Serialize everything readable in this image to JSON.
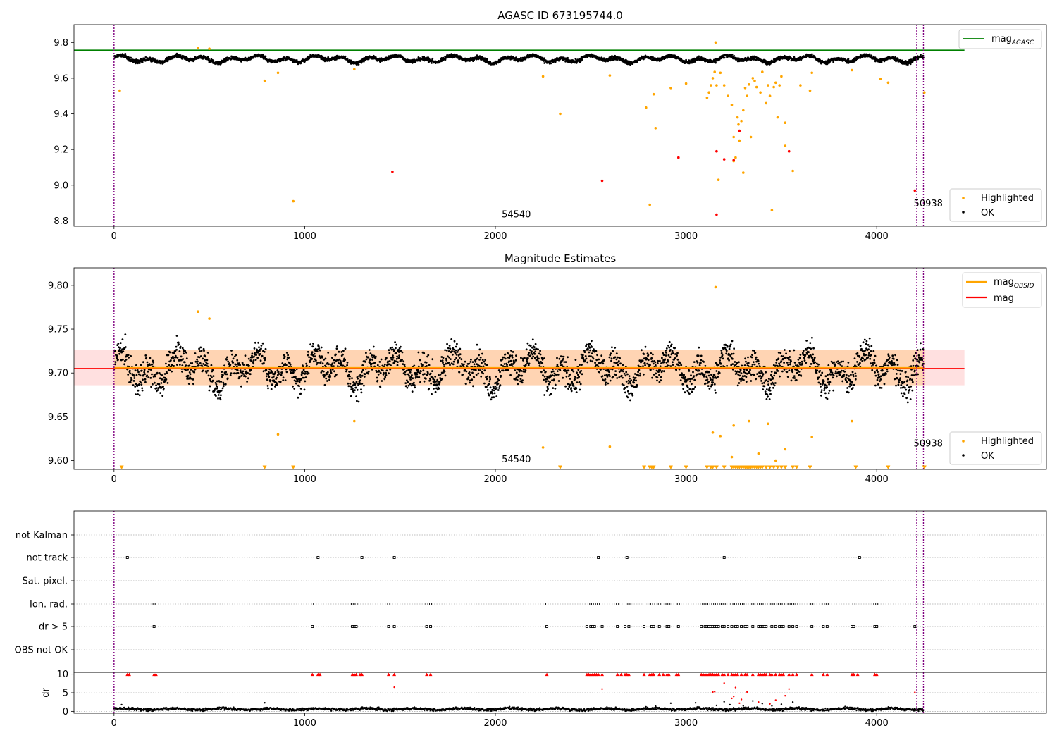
{
  "chart_data": [
    {
      "type": "scatter",
      "title": "AGASC ID 673195744.0",
      "xlim": [
        -210,
        4890
      ],
      "ylim": [
        8.77,
        9.9
      ],
      "xticks": [
        0,
        1000,
        2000,
        3000,
        4000
      ],
      "yticks": [
        8.8,
        9.0,
        9.2,
        9.4,
        9.6,
        9.8
      ],
      "ytick_format": 1,
      "vlines": [
        0,
        4210,
        4245
      ],
      "hline": {
        "name": "mag_AGASC",
        "y": 9.757,
        "x_end": 4460,
        "color": "#008000"
      },
      "annotations": [
        {
          "text": "54540",
          "x": 2110,
          "y": 8.82
        },
        {
          "text": "50938",
          "x": 4270,
          "y": 8.88
        }
      ],
      "ok_band": {
        "y": 9.705,
        "amp": 0.02,
        "noise": 0.009
      },
      "series": [
        {
          "name": "Highlighted",
          "color": "#ffa500",
          "values": [
            [
              30,
              9.53
            ],
            [
              440,
              9.77
            ],
            [
              500,
              9.765
            ],
            [
              790,
              9.585
            ],
            [
              860,
              9.63
            ],
            [
              940,
              8.91
            ],
            [
              1260,
              9.65
            ],
            [
              2250,
              9.61
            ],
            [
              2340,
              9.4
            ],
            [
              2600,
              9.615
            ],
            [
              2790,
              9.435
            ],
            [
              2810,
              8.89
            ],
            [
              2830,
              9.51
            ],
            [
              2840,
              9.32
            ],
            [
              2920,
              9.545
            ],
            [
              3000,
              9.57
            ],
            [
              3110,
              9.49
            ],
            [
              3120,
              9.52
            ],
            [
              3130,
              9.56
            ],
            [
              3140,
              9.6
            ],
            [
              3150,
              9.635
            ],
            [
              3155,
              9.8
            ],
            [
              3160,
              9.56
            ],
            [
              3170,
              9.03
            ],
            [
              3180,
              9.63
            ],
            [
              3200,
              9.56
            ],
            [
              3220,
              9.5
            ],
            [
              3240,
              9.45
            ],
            [
              3250,
              9.27
            ],
            [
              3250,
              9.135
            ],
            [
              3260,
              9.155
            ],
            [
              3270,
              9.38
            ],
            [
              3275,
              9.34
            ],
            [
              3280,
              9.25
            ],
            [
              3290,
              9.36
            ],
            [
              3300,
              9.42
            ],
            [
              3300,
              9.07
            ],
            [
              3310,
              9.545
            ],
            [
              3320,
              9.5
            ],
            [
              3330,
              9.565
            ],
            [
              3340,
              9.27
            ],
            [
              3350,
              9.6
            ],
            [
              3360,
              9.585
            ],
            [
              3370,
              9.55
            ],
            [
              3390,
              9.52
            ],
            [
              3400,
              9.635
            ],
            [
              3420,
              9.46
            ],
            [
              3430,
              9.56
            ],
            [
              3440,
              9.5
            ],
            [
              3450,
              8.86
            ],
            [
              3460,
              9.55
            ],
            [
              3470,
              9.575
            ],
            [
              3480,
              9.38
            ],
            [
              3490,
              9.56
            ],
            [
              3500,
              9.61
            ],
            [
              3520,
              9.35
            ],
            [
              3520,
              9.22
            ],
            [
              3560,
              9.08
            ],
            [
              3600,
              9.56
            ],
            [
              3650,
              9.53
            ],
            [
              3660,
              9.63
            ],
            [
              3870,
              9.645
            ],
            [
              4020,
              9.595
            ],
            [
              4060,
              9.575
            ],
            [
              4250,
              9.52
            ]
          ]
        },
        {
          "name": "Red",
          "color": "#ff0000",
          "values": [
            [
              1460,
              9.075
            ],
            [
              2560,
              9.025
            ],
            [
              2960,
              9.155
            ],
            [
              3160,
              9.19
            ],
            [
              3160,
              8.835
            ],
            [
              3200,
              9.145
            ],
            [
              3250,
              9.14
            ],
            [
              3280,
              9.305
            ],
            [
              3540,
              9.19
            ],
            [
              4200,
              8.97
            ]
          ]
        }
      ],
      "legend": [
        {
          "text": "mag",
          "sub": "AGASC",
          "kind": "line",
          "color": "#008000",
          "pos": "upper-right"
        },
        {
          "text": "Highlighted",
          "kind": "dot",
          "color": "#ffa500",
          "pos": "lower-right"
        },
        {
          "text": "OK",
          "kind": "dot",
          "color": "#000000",
          "pos": "lower-right"
        }
      ]
    },
    {
      "type": "scatter",
      "title": "Magnitude Estimates",
      "xlim": [
        -210,
        4890
      ],
      "ylim": [
        9.59,
        9.82
      ],
      "xticks": [
        0,
        1000,
        2000,
        3000,
        4000
      ],
      "yticks": [
        9.6,
        9.65,
        9.7,
        9.75,
        9.8
      ],
      "ytick_format": 2,
      "vlines": [
        0,
        4210,
        4245
      ],
      "band": {
        "y_low": 9.686,
        "y_high": 9.726,
        "x_start": -210,
        "x_end": 4460,
        "color": "#ff0000",
        "opacity": 0.12
      },
      "band2": {
        "y_low": 9.686,
        "y_high": 9.726,
        "x_start": 0,
        "x_end": 4250,
        "color": "#ffa500",
        "opacity": 0.2
      },
      "hlines": [
        {
          "name": "mag",
          "y": 9.705,
          "x_start": -210,
          "x_end": 4460,
          "color": "#ff0000"
        },
        {
          "name": "mag_OBSID",
          "y": 9.706,
          "x_start": 0,
          "x_end": 4250,
          "color": "#ffa500"
        }
      ],
      "annotations": [
        {
          "text": "54540",
          "x": 2110,
          "y": 9.598
        },
        {
          "text": "50938",
          "x": 4270,
          "y": 9.616
        }
      ],
      "ok_band": {
        "y": 9.705,
        "amp": 0.018,
        "noise": 0.016
      },
      "series": [
        {
          "name": "Highlighted",
          "color": "#ffa500",
          "values": [
            [
              440,
              9.77
            ],
            [
              500,
              9.762
            ],
            [
              860,
              9.63
            ],
            [
              1260,
              9.645
            ],
            [
              2250,
              9.615
            ],
            [
              2600,
              9.616
            ],
            [
              3140,
              9.632
            ],
            [
              3155,
              9.798
            ],
            [
              3180,
              9.628
            ],
            [
              3250,
              9.64
            ],
            [
              3330,
              9.645
            ],
            [
              3430,
              9.642
            ],
            [
              3520,
              9.613
            ],
            [
              3660,
              9.627
            ],
            [
              3870,
              9.645
            ],
            [
              3240,
              9.604
            ],
            [
              3380,
              9.608
            ],
            [
              3470,
              9.6
            ]
          ]
        },
        {
          "name": "Off-scale",
          "color": "#ffa500",
          "marker": "triangle",
          "y": 9.592,
          "values": [
            40,
            790,
            940,
            2340,
            2780,
            2810,
            2820,
            2830,
            2920,
            3000,
            3110,
            3130,
            3140,
            3160,
            3200,
            3240,
            3250,
            3260,
            3270,
            3280,
            3290,
            3300,
            3310,
            3320,
            3330,
            3340,
            3350,
            3360,
            3370,
            3380,
            3390,
            3400,
            3420,
            3440,
            3460,
            3480,
            3500,
            3520,
            3560,
            3580,
            3650,
            3890,
            4060,
            4250
          ]
        }
      ],
      "legend": [
        {
          "text": "mag",
          "sub": "OBSID",
          "kind": "line",
          "color": "#ffa500",
          "pos": "upper-right"
        },
        {
          "text": "mag",
          "sub": "",
          "kind": "line",
          "color": "#ff0000",
          "pos": "upper-right"
        },
        {
          "text": "Highlighted",
          "kind": "dot",
          "color": "#ffa500",
          "pos": "lower-right"
        },
        {
          "text": "OK",
          "kind": "dot",
          "color": "#000000",
          "pos": "lower-right"
        }
      ]
    },
    {
      "type": "scatter",
      "title": "",
      "xlim": [
        -210,
        4890
      ],
      "categories": [
        "not Kalman",
        "not track",
        "Sat. pixel.",
        "Ion. rad.",
        "dr > 5",
        "OBS not OK"
      ],
      "vlines": [
        0,
        4210,
        4245
      ],
      "flags": {
        "not track": [
          70,
          1070,
          1300,
          1470,
          2540,
          2690,
          3200,
          3910
        ],
        "Ion. rad.": [
          210,
          1040,
          1250,
          1260,
          1270,
          1440,
          1640,
          1660,
          2270,
          2480,
          2500,
          2510,
          2520,
          2540,
          2640,
          2680,
          2700,
          2780,
          2820,
          2830,
          2860,
          2900,
          2910,
          2960,
          3080,
          3100,
          3110,
          3120,
          3130,
          3140,
          3150,
          3160,
          3170,
          3190,
          3200,
          3220,
          3240,
          3260,
          3270,
          3290,
          3310,
          3320,
          3350,
          3380,
          3390,
          3400,
          3410,
          3420,
          3450,
          3470,
          3490,
          3500,
          3510,
          3540,
          3560,
          3580,
          3660,
          3720,
          3740,
          3870,
          3880,
          3990,
          4000
        ],
        "dr > 5": [
          210,
          1040,
          1250,
          1260,
          1270,
          1440,
          1470,
          1640,
          1660,
          2270,
          2480,
          2500,
          2510,
          2520,
          2560,
          2640,
          2680,
          2700,
          2780,
          2820,
          2830,
          2860,
          2900,
          2910,
          2960,
          3080,
          3100,
          3110,
          3120,
          3130,
          3140,
          3150,
          3160,
          3170,
          3190,
          3200,
          3220,
          3240,
          3260,
          3270,
          3290,
          3310,
          3320,
          3350,
          3380,
          3390,
          3400,
          3410,
          3420,
          3450,
          3470,
          3490,
          3500,
          3510,
          3540,
          3560,
          3580,
          3660,
          3720,
          3740,
          3870,
          3880,
          3990,
          4000,
          4200
        ]
      }
    },
    {
      "type": "scatter",
      "ylabel": "dr",
      "xlim": [
        -210,
        4890
      ],
      "ylim": [
        -0.5,
        10.5
      ],
      "xticks": [
        0,
        1000,
        2000,
        3000,
        4000
      ],
      "yticks": [
        0,
        5,
        10
      ],
      "vlines": [
        0,
        4210,
        4245
      ],
      "baseline": {
        "mean": 0.6,
        "noise": 0.35
      },
      "clipped_x": [
        70,
        80,
        210,
        220,
        1040,
        1070,
        1080,
        1250,
        1260,
        1270,
        1290,
        1300,
        1440,
        1470,
        1640,
        1660,
        2270,
        2480,
        2490,
        2500,
        2510,
        2520,
        2530,
        2540,
        2560,
        2640,
        2660,
        2680,
        2690,
        2700,
        2780,
        2810,
        2820,
        2830,
        2860,
        2880,
        2900,
        2910,
        2950,
        2960,
        3080,
        3090,
        3100,
        3110,
        3120,
        3130,
        3140,
        3150,
        3160,
        3170,
        3190,
        3200,
        3220,
        3240,
        3250,
        3260,
        3270,
        3290,
        3310,
        3320,
        3350,
        3380,
        3390,
        3400,
        3410,
        3420,
        3440,
        3450,
        3470,
        3490,
        3500,
        3510,
        3540,
        3560,
        3580,
        3660,
        3720,
        3740,
        3870,
        3880,
        3900,
        3990,
        4000
      ],
      "red_mid": [
        [
          1470,
          6.5
        ],
        [
          2560,
          6.0
        ],
        [
          3140,
          5.2
        ],
        [
          3150,
          5.3
        ],
        [
          3200,
          7.6
        ],
        [
          3240,
          3.5
        ],
        [
          3250,
          4.0
        ],
        [
          3260,
          6.4
        ],
        [
          3280,
          2.2
        ],
        [
          3290,
          3.2
        ],
        [
          3320,
          5.2
        ],
        [
          3380,
          2.5
        ],
        [
          3440,
          2.0
        ],
        [
          3470,
          3.0
        ],
        [
          3520,
          4.2
        ],
        [
          3540,
          6.0
        ],
        [
          4200,
          5.1
        ]
      ],
      "black_mid": [
        [
          790,
          2.3
        ],
        [
          2920,
          2.2
        ],
        [
          3050,
          2.3
        ],
        [
          3160,
          1.6
        ],
        [
          3200,
          2.6
        ],
        [
          3230,
          1.8
        ],
        [
          3300,
          1.5
        ],
        [
          3350,
          2.8
        ],
        [
          3400,
          2.1
        ],
        [
          3450,
          1.5
        ],
        [
          3500,
          1.9
        ],
        [
          3560,
          2.5
        ],
        [
          40,
          1.8
        ],
        [
          2840,
          1.4
        ]
      ]
    }
  ]
}
